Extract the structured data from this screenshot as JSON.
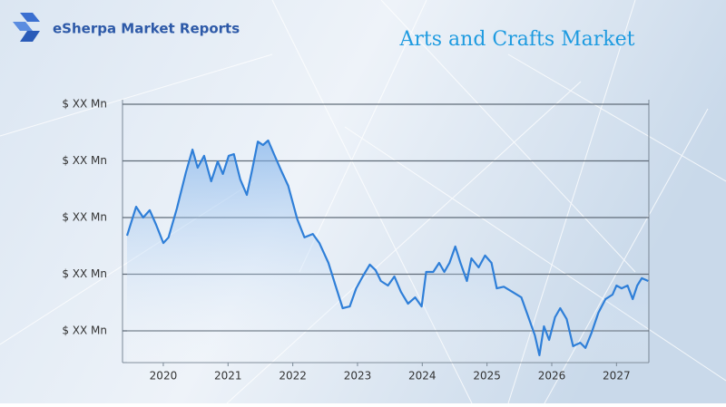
{
  "header": {
    "brand": "eSherpa Market Reports"
  },
  "chart_data": {
    "type": "line",
    "title": "Arts and Crafts Market",
    "x": [
      2019.44,
      2019.58,
      2019.69,
      2019.79,
      2019.89,
      2020.0,
      2020.08,
      2020.21,
      2020.35,
      2020.45,
      2020.53,
      2020.63,
      2020.74,
      2020.84,
      2020.92,
      2021.01,
      2021.09,
      2021.19,
      2021.29,
      2021.37,
      2021.46,
      2021.54,
      2021.62,
      2021.71,
      2021.82,
      2021.93,
      2022.07,
      2022.18,
      2022.31,
      2022.41,
      2022.55,
      2022.66,
      2022.77,
      2022.88,
      2022.98,
      2023.08,
      2023.19,
      2023.28,
      2023.36,
      2023.47,
      2023.57,
      2023.67,
      2023.78,
      2023.89,
      2023.99,
      2024.06,
      2024.17,
      2024.26,
      2024.34,
      2024.42,
      2024.51,
      2024.59,
      2024.69,
      2024.76,
      2024.87,
      2024.97,
      2025.07,
      2025.15,
      2025.26,
      2025.39,
      2025.53,
      2025.64,
      2025.74,
      2025.81,
      2025.88,
      2025.96,
      2026.05,
      2026.13,
      2026.23,
      2026.33,
      2026.44,
      2026.52,
      2026.61,
      2026.72,
      2026.83,
      2026.94,
      2027.0,
      2027.08,
      2027.17,
      2027.25,
      2027.32,
      2027.39,
      2027.49
    ],
    "series": [
      {
        "color": "#2f7fd8",
        "values": [
          2.68,
          3.19,
          3.0,
          3.13,
          2.87,
          2.55,
          2.65,
          3.16,
          3.8,
          4.2,
          3.88,
          4.09,
          3.64,
          3.99,
          3.77,
          4.09,
          4.12,
          3.67,
          3.4,
          3.83,
          4.34,
          4.28,
          4.36,
          4.12,
          3.83,
          3.56,
          2.97,
          2.65,
          2.71,
          2.55,
          2.2,
          1.8,
          1.4,
          1.43,
          1.75,
          1.96,
          2.17,
          2.07,
          1.88,
          1.8,
          1.96,
          1.69,
          1.48,
          1.59,
          1.43,
          2.04,
          2.04,
          2.2,
          2.04,
          2.2,
          2.49,
          2.2,
          1.88,
          2.28,
          2.12,
          2.33,
          2.2,
          1.75,
          1.78,
          1.69,
          1.59,
          1.24,
          0.92,
          0.57,
          1.08,
          0.84,
          1.24,
          1.4,
          1.21,
          0.73,
          0.79,
          0.7,
          0.95,
          1.32,
          1.56,
          1.64,
          1.8,
          1.75,
          1.8,
          1.56,
          1.8,
          1.93,
          1.88
        ]
      }
    ],
    "xlim": [
      2019.44,
      2027.5
    ],
    "xticks": [
      2020,
      2021,
      2022,
      2023,
      2024,
      2025,
      2026,
      2027
    ],
    "ylim": [
      0.44,
      5
    ],
    "yticks": [
      {
        "value": 1,
        "label": "$ XX Mn"
      },
      {
        "value": 2,
        "label": "$ XX Mn"
      },
      {
        "value": 3,
        "label": "$ XX Mn"
      },
      {
        "value": 4,
        "label": "$ XX Mn"
      },
      {
        "value": 5,
        "label": "$ XX Mn"
      }
    ],
    "grid": true
  }
}
